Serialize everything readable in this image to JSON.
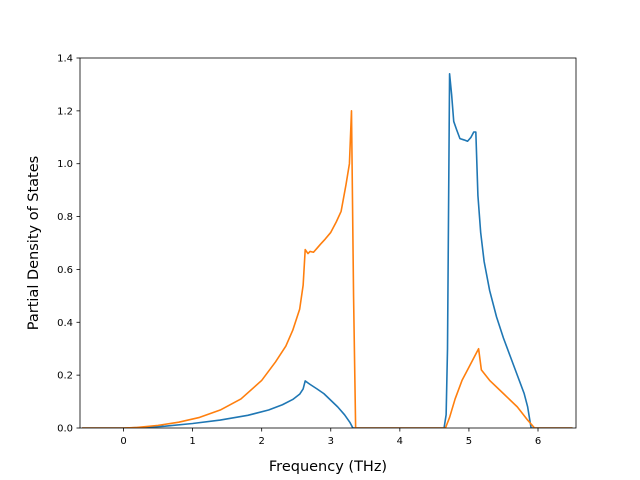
{
  "chart_data": {
    "type": "line",
    "title": "",
    "xlabel": "Frequency (THz)",
    "ylabel": "Partial Density of States",
    "xlim": [
      -0.63,
      6.55
    ],
    "ylim": [
      0,
      1.4
    ],
    "xticks": [
      0,
      1,
      2,
      3,
      4,
      5,
      6
    ],
    "yticks": [
      0.0,
      0.2,
      0.4,
      0.6,
      0.8,
      1.0,
      1.2,
      1.4
    ],
    "xtick_labels": [
      "0",
      "1",
      "2",
      "3",
      "4",
      "5",
      "6"
    ],
    "ytick_labels": [
      "0.0",
      "0.2",
      "0.4",
      "0.6",
      "0.8",
      "1.0",
      "1.2",
      "1.4"
    ],
    "grid": false,
    "legend": "none",
    "series": [
      {
        "color": "#1f77b4",
        "x": [
          -0.6,
          0.0,
          0.3,
          0.6,
          1.0,
          1.4,
          1.8,
          2.1,
          2.3,
          2.45,
          2.55,
          2.6,
          2.63,
          2.7,
          2.8,
          2.9,
          3.0,
          3.1,
          3.2,
          3.28,
          3.32,
          3.5,
          4.0,
          4.5,
          4.64,
          4.67,
          4.69,
          4.72,
          4.75,
          4.78,
          4.82,
          4.87,
          4.93,
          4.98,
          5.03,
          5.07,
          5.1,
          5.13,
          5.17,
          5.22,
          5.3,
          5.4,
          5.5,
          5.6,
          5.7,
          5.8,
          5.85,
          5.9,
          6.0,
          6.5
        ],
        "y": [
          0.0,
          0.0,
          0.002,
          0.007,
          0.017,
          0.03,
          0.048,
          0.068,
          0.088,
          0.108,
          0.128,
          0.148,
          0.178,
          0.165,
          0.148,
          0.13,
          0.105,
          0.08,
          0.05,
          0.02,
          0.0,
          0.0,
          0.0,
          0.0,
          0.0,
          0.05,
          0.3,
          1.34,
          1.26,
          1.16,
          1.13,
          1.095,
          1.09,
          1.085,
          1.1,
          1.12,
          1.12,
          0.88,
          0.74,
          0.63,
          0.52,
          0.42,
          0.34,
          0.27,
          0.2,
          0.13,
          0.08,
          0.0,
          0.0,
          0.0
        ]
      },
      {
        "color": "#ff7f0e",
        "x": [
          -0.6,
          0.0,
          0.2,
          0.5,
          0.8,
          1.1,
          1.4,
          1.7,
          2.0,
          2.2,
          2.35,
          2.45,
          2.55,
          2.6,
          2.63,
          2.67,
          2.7,
          2.75,
          2.8,
          2.85,
          2.92,
          3.0,
          3.08,
          3.15,
          3.22,
          3.27,
          3.3,
          3.33,
          3.36,
          3.5,
          4.0,
          4.5,
          4.66,
          4.72,
          4.8,
          4.9,
          5.0,
          5.1,
          5.14,
          5.18,
          5.3,
          5.5,
          5.7,
          5.85,
          5.95,
          6.5
        ],
        "y": [
          0.0,
          0.0,
          0.002,
          0.01,
          0.022,
          0.04,
          0.068,
          0.11,
          0.18,
          0.25,
          0.31,
          0.37,
          0.45,
          0.54,
          0.675,
          0.66,
          0.668,
          0.665,
          0.68,
          0.695,
          0.715,
          0.74,
          0.78,
          0.82,
          0.92,
          1.0,
          1.2,
          0.5,
          0.0,
          0.0,
          0.0,
          0.0,
          0.0,
          0.04,
          0.11,
          0.18,
          0.23,
          0.28,
          0.3,
          0.22,
          0.18,
          0.13,
          0.08,
          0.03,
          0.0,
          0.0
        ]
      }
    ]
  }
}
